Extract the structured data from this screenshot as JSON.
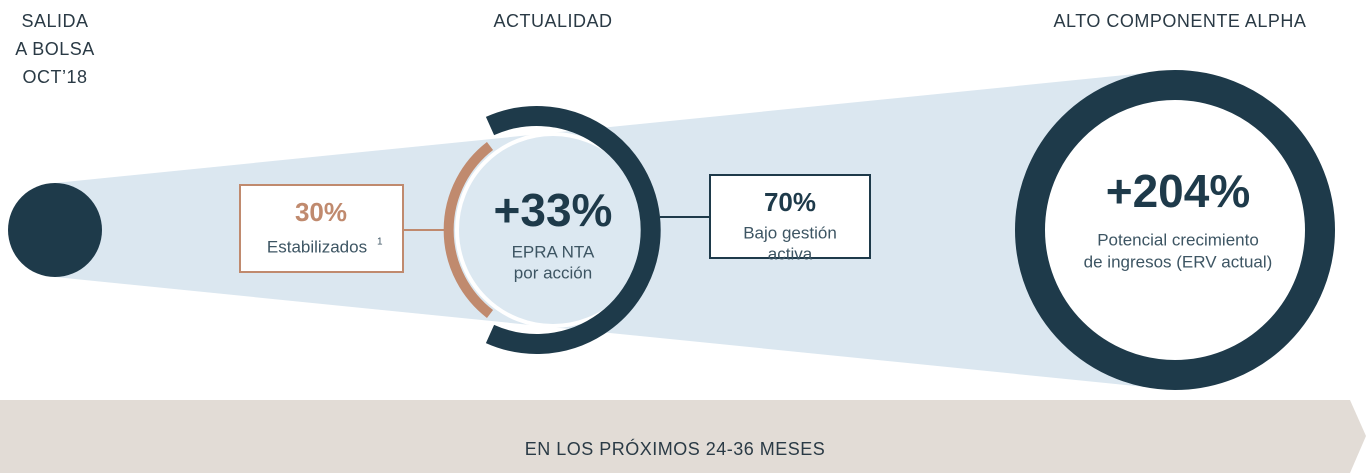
{
  "headers": {
    "start": [
      "SALIDA",
      "A BOLSA",
      "OCT’18"
    ],
    "current": "ACTUALIDAD",
    "future": "ALTO COMPONENTE ALPHA"
  },
  "stabilized": {
    "value": "30%",
    "label": "Estabilizados",
    "footnote": "1"
  },
  "current": {
    "value": "+33%",
    "label": [
      "EPRA NTA",
      "por acción"
    ]
  },
  "managed": {
    "value": "70%",
    "label": [
      "Bajo gestión",
      "activa"
    ]
  },
  "future": {
    "value": "+204%",
    "label": [
      "Potencial crecimiento",
      "de ingresos (ERV actual)"
    ]
  },
  "timeline": "EN LOS PRÓXIMOS 24-36 MESES"
}
